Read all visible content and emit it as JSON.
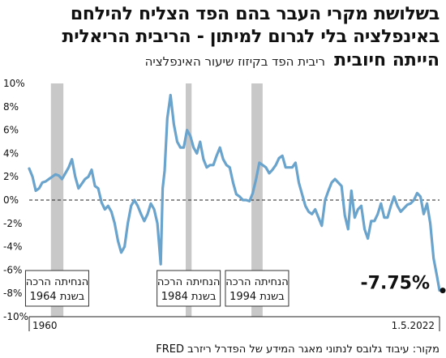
{
  "headline": {
    "line1": "בשלושת מקרי העבר בהם הפד הצליח להילחם",
    "line2": "באינפלציה בלי לגרום למיתון - הריבית הריאלית",
    "line3_bold": "הייתה חיובית",
    "line3_sub": "ריבית הפד בקיזוז שיעור האינפלציה"
  },
  "source": "מקור: עיבוד גלובס לנתוני מאגר המידע של הפדרל ריזרב FRED",
  "annotation": {
    "final_value_label": "-7.75%"
  },
  "colors": {
    "line": "#6aa3cc",
    "shade": "#c8c8c8",
    "zero_line": "#222222",
    "text": "#111111"
  },
  "chart_data": {
    "type": "line",
    "title": "",
    "xlabel": "",
    "ylabel": "",
    "ylim": [
      -10,
      10
    ],
    "y_ticks": [
      "10%",
      "8%",
      "6%",
      "4%",
      "2%",
      "0%",
      "-2%",
      "-4%",
      "-6%",
      "-8%",
      "-10%"
    ],
    "x_start_label": "1960",
    "x_end_label": "1.5.2022",
    "xlim": [
      1960,
      2022.4
    ],
    "zero_line": "dashed",
    "shaded_periods": [
      {
        "start": 1963.3,
        "end": 1965.2,
        "label_line1": "הנחיתה הרכה",
        "label_line2": "בשנת 1964"
      },
      {
        "start": 1983.8,
        "end": 1984.7,
        "label_line1": "הנחיתה הרכה",
        "label_line2": "בשנת 1984"
      },
      {
        "start": 1993.8,
        "end": 1995.5,
        "label_line1": "הנחיתה הרכה",
        "label_line2": "בשנת 1994"
      }
    ],
    "series": [
      {
        "x": [
          1960,
          1960.5,
          1961,
          1961.5,
          1962,
          1962.5,
          1963,
          1963.5,
          1964,
          1964.5,
          1965,
          1965.5,
          1966,
          1966.5,
          1967,
          1967.5,
          1968,
          1968.5,
          1969,
          1969.5,
          1970,
          1970.5,
          1971,
          1971.5,
          1972,
          1972.5,
          1973,
          1973.5,
          1974,
          1974.5,
          1975,
          1975.5,
          1976,
          1976.5,
          1977,
          1977.5,
          1978,
          1978.5,
          1979,
          1979.5,
          1980,
          1980.3,
          1980.6,
          1981,
          1981.5,
          1982,
          1982.5,
          1983,
          1983.5,
          1984,
          1984.5,
          1985,
          1985.5,
          1986,
          1986.5,
          1987,
          1987.5,
          1988,
          1988.5,
          1989,
          1989.5,
          1990,
          1990.5,
          1991,
          1991.5,
          1992,
          1992.5,
          1993,
          1993.5,
          1994,
          1994.5,
          1995,
          1995.5,
          1996,
          1996.5,
          1997,
          1997.5,
          1998,
          1998.5,
          1999,
          1999.5,
          2000,
          2000.5,
          2001,
          2001.5,
          2002,
          2002.5,
          2003,
          2003.5,
          2004,
          2004.5,
          2005,
          2005.5,
          2006,
          2006.5,
          2007,
          2007.5,
          2008,
          2008.5,
          2009,
          2009.5,
          2010,
          2010.5,
          2011,
          2011.5,
          2012,
          2012.5,
          2013,
          2013.5,
          2014,
          2014.5,
          2015,
          2015.5,
          2016,
          2016.5,
          2017,
          2017.5,
          2018,
          2018.5,
          2019,
          2019.5,
          2020,
          2020.5,
          2021,
          2021.5,
          2022,
          2022.4
        ],
        "values": [
          2.7,
          2.0,
          0.8,
          1.0,
          1.5,
          1.6,
          1.8,
          2.0,
          2.2,
          2.1,
          1.8,
          2.3,
          2.8,
          3.5,
          2.0,
          1.0,
          1.4,
          1.8,
          2.0,
          2.6,
          1.2,
          1.0,
          -0.2,
          -0.8,
          -0.5,
          -1.0,
          -2.0,
          -3.5,
          -4.5,
          -4.0,
          -2.0,
          -0.5,
          0.0,
          -0.5,
          -1.2,
          -1.8,
          -1.2,
          -0.3,
          -0.8,
          -2.0,
          -5.5,
          1.0,
          2.5,
          7.0,
          9.0,
          6.5,
          5.0,
          4.5,
          4.5,
          6.0,
          5.5,
          4.5,
          4.0,
          5.0,
          3.5,
          2.8,
          3.0,
          3.0,
          3.8,
          4.5,
          3.5,
          3.0,
          2.8,
          1.5,
          0.5,
          0.3,
          0.0,
          0.0,
          -0.1,
          0.6,
          1.8,
          3.2,
          3.0,
          2.8,
          2.3,
          2.6,
          3.0,
          3.6,
          3.8,
          2.8,
          2.8,
          2.8,
          3.2,
          1.5,
          0.5,
          -0.5,
          -1.0,
          -1.2,
          -0.8,
          -1.5,
          -2.2,
          0.0,
          0.8,
          1.5,
          1.8,
          1.5,
          1.2,
          -1.3,
          -2.5,
          0.8,
          -1.5,
          -0.8,
          -0.5,
          -2.5,
          -3.3,
          -1.8,
          -1.8,
          -1.2,
          -0.3,
          -1.5,
          -1.5,
          -0.5,
          0.3,
          -0.5,
          -1.0,
          -0.7,
          -0.4,
          -0.3,
          0.0,
          0.6,
          0.3,
          -1.2,
          -0.3,
          -2.0,
          -5.0,
          -6.5,
          -7.75
        ]
      }
    ]
  }
}
